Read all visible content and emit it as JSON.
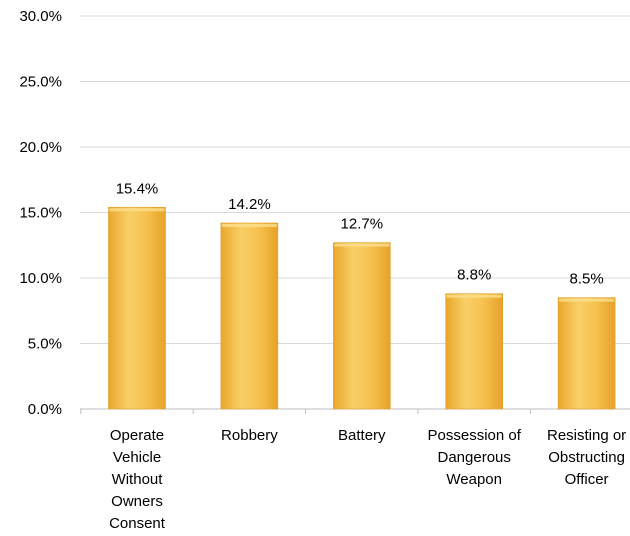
{
  "chart_data": {
    "type": "bar",
    "categories": [
      [
        "Operate",
        "Vehicle",
        "Without",
        "Owners",
        "Consent"
      ],
      [
        "Robbery"
      ],
      [
        "Battery"
      ],
      [
        "Possession of",
        "Dangerous",
        "Weapon"
      ],
      [
        "Resisting or",
        "Obstructing",
        "Officer"
      ]
    ],
    "values": [
      15.4,
      14.2,
      12.7,
      8.8,
      8.5
    ],
    "data_labels": [
      "15.4%",
      "14.2%",
      "12.7%",
      "8.8%",
      "8.5%"
    ],
    "ylim": [
      0,
      30
    ],
    "yticks": [
      0,
      5,
      10,
      15,
      20,
      25,
      30
    ],
    "ytick_labels": [
      "0.0%",
      "5.0%",
      "10.0%",
      "15.0%",
      "20.0%",
      "25.0%",
      "30.0%"
    ],
    "grid": true,
    "bar_color": "#F2B43C",
    "bar_color_light": "#F9D06A",
    "gridline_color": "#D9D9D9"
  }
}
